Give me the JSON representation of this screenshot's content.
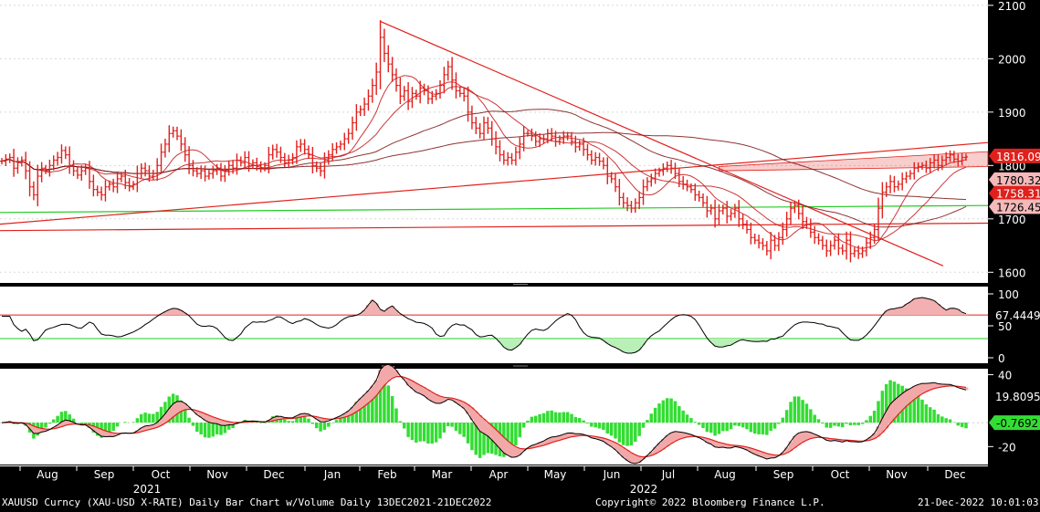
{
  "window": {
    "title": "XAUUSD Curncy (XAU-USD X-RATE) Daily Bar Chart w/Volume  Daily 13DEC2021-21DEC2022",
    "copyright": "Copyright© 2022 Bloomberg Finance L.P.",
    "timestamp": "21-Dec-2022 10:01:03"
  },
  "colors": {
    "background": "#ffffff",
    "bars": "#e0201c",
    "ma_red": "#c41414",
    "ma_dark": "#7a1010",
    "support_green": "#22cc22",
    "price_tag_red": "#e0201c",
    "rsi_line": "#000000",
    "macd_signal": "#e0201c",
    "macd_line": "#000000",
    "hist_green": "#33dd33"
  },
  "chart_data": [
    {
      "type": "bar",
      "name": "price",
      "ylim": [
        1580,
        2110
      ],
      "yticks": [
        1600,
        1700,
        1800,
        1900,
        2000,
        2100
      ],
      "xticks": [
        "Aug",
        "Sep",
        "Oct",
        "Nov",
        "Dec",
        "Jan",
        "Feb",
        "Mar",
        "Apr",
        "May",
        "Jun",
        "Jul",
        "Aug",
        "Sep",
        "Oct",
        "Nov",
        "Dec"
      ],
      "year_labels": [
        "2021",
        "2022"
      ],
      "closes": [
        1808,
        1812,
        1815,
        1795,
        1805,
        1810,
        1790,
        1760,
        1745,
        1780,
        1795,
        1790,
        1800,
        1810,
        1815,
        1828,
        1820,
        1800,
        1790,
        1782,
        1790,
        1795,
        1770,
        1755,
        1750,
        1745,
        1760,
        1765,
        1760,
        1775,
        1780,
        1768,
        1760,
        1765,
        1785,
        1795,
        1790,
        1780,
        1785,
        1800,
        1825,
        1840,
        1860,
        1865,
        1855,
        1840,
        1820,
        1800,
        1790,
        1785,
        1790,
        1780,
        1785,
        1790,
        1795,
        1780,
        1790,
        1800,
        1795,
        1810,
        1805,
        1815,
        1800,
        1805,
        1800,
        1795,
        1800,
        1820,
        1830,
        1825,
        1815,
        1805,
        1810,
        1815,
        1835,
        1840,
        1830,
        1820,
        1800,
        1795,
        1790,
        1810,
        1820,
        1830,
        1835,
        1840,
        1850,
        1860,
        1880,
        1900,
        1905,
        1915,
        1930,
        1950,
        1975,
        2040,
        2010,
        1990,
        1970,
        1950,
        1930,
        1940,
        1920,
        1935,
        1930,
        1945,
        1940,
        1925,
        1930,
        1935,
        1950,
        1970,
        1985,
        1960,
        1940,
        1935,
        1930,
        1900,
        1880,
        1870,
        1860,
        1880,
        1870,
        1850,
        1835,
        1820,
        1810,
        1815,
        1810,
        1825,
        1840,
        1860,
        1860,
        1855,
        1845,
        1850,
        1850,
        1860,
        1855,
        1845,
        1850,
        1855,
        1855,
        1845,
        1835,
        1840,
        1830,
        1820,
        1810,
        1815,
        1808,
        1800,
        1780,
        1775,
        1760,
        1740,
        1730,
        1725,
        1720,
        1730,
        1740,
        1760,
        1770,
        1775,
        1785,
        1790,
        1795,
        1800,
        1795,
        1785,
        1770,
        1765,
        1760,
        1755,
        1745,
        1740,
        1730,
        1715,
        1720,
        1700,
        1715,
        1720,
        1705,
        1710,
        1720,
        1700,
        1690,
        1680,
        1665,
        1660,
        1655,
        1650,
        1640,
        1660,
        1650,
        1665,
        1680,
        1700,
        1720,
        1725,
        1710,
        1695,
        1690,
        1675,
        1665,
        1660,
        1650,
        1640,
        1650,
        1660,
        1645,
        1640,
        1660,
        1635,
        1640,
        1635,
        1640,
        1655,
        1665,
        1680,
        1720,
        1750,
        1760,
        1770,
        1760,
        1765,
        1775,
        1780,
        1785,
        1795,
        1798,
        1800,
        1795,
        1805,
        1810,
        1800,
        1810,
        1815,
        1820,
        1812,
        1808,
        1815,
        1816
      ],
      "last_price": "1816.09",
      "ma_labels": [
        "1780.32",
        "1758.31",
        "1726.45"
      ],
      "support_levels": [
        1725,
        1692
      ]
    },
    {
      "type": "line",
      "name": "rsi",
      "ylim": [
        0,
        100
      ],
      "yticks": [
        0,
        50,
        100
      ],
      "upper_band": 67,
      "lower_band": 30,
      "last_value": "67.4449"
    },
    {
      "type": "area",
      "name": "macd",
      "ylim": [
        -35,
        45
      ],
      "yticks": [
        -20,
        40
      ],
      "last_macd": "19.8095",
      "last_histogram": "-0.7692"
    }
  ]
}
